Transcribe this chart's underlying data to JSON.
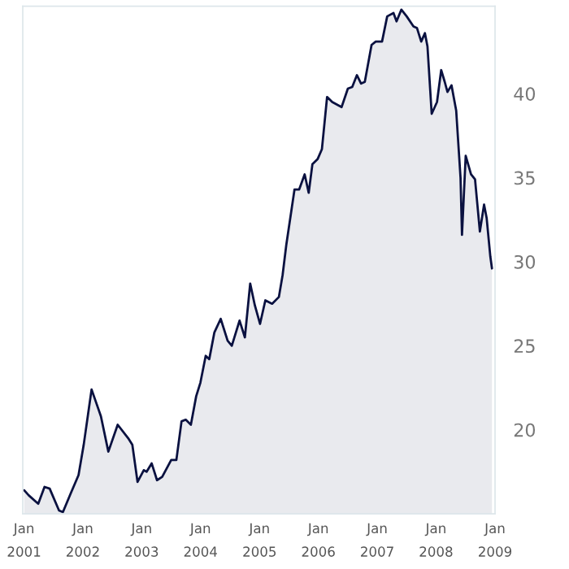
{
  "chart_data": {
    "type": "area",
    "x": [
      "2001-01-02",
      "2001-01-30",
      "2001-03-30",
      "2001-05-08",
      "2001-06-09",
      "2001-08-06",
      "2001-08-30",
      "2001-10-17",
      "2001-12-05",
      "2002-01-06",
      "2002-02-24",
      "2002-04-23",
      "2002-06-08",
      "2002-08-05",
      "2002-10-09",
      "2002-11-04",
      "2002-12-06",
      "2003-01-14",
      "2003-01-31",
      "2003-03-04",
      "2003-04-06",
      "2003-05-08",
      "2003-07-03",
      "2003-08-04",
      "2003-09-05",
      "2003-10-01",
      "2003-11-02",
      "2003-12-05",
      "2003-12-31",
      "2004-02-02",
      "2004-02-24",
      "2004-03-27",
      "2004-05-05",
      "2004-06-17",
      "2004-07-13",
      "2004-08-30",
      "2004-10-02",
      "2004-11-04",
      "2004-12-03",
      "2005-01-04",
      "2005-02-06",
      "2005-03-20",
      "2005-05-01",
      "2005-05-24",
      "2005-06-16",
      "2005-08-06",
      "2005-09-04",
      "2005-10-08",
      "2005-11-02",
      "2005-11-25",
      "2005-12-27",
      "2006-01-23",
      "2006-02-24",
      "2006-03-28",
      "2006-05-25",
      "2006-07-03",
      "2006-07-30",
      "2006-08-28",
      "2006-09-23",
      "2006-10-16",
      "2006-11-27",
      "2006-12-23",
      "2007-01-31",
      "2007-03-04",
      "2007-04-12",
      "2007-05-01",
      "2007-05-31",
      "2007-07-03",
      "2007-08-14",
      "2007-09-05",
      "2007-10-01",
      "2007-10-24",
      "2007-11-09",
      "2007-12-05",
      "2008-01-07",
      "2008-02-02",
      "2008-02-24",
      "2008-03-12",
      "2008-04-06",
      "2008-05-05",
      "2008-06-01",
      "2008-06-10",
      "2008-07-03",
      "2008-08-05",
      "2008-08-30",
      "2008-09-29",
      "2008-10-25",
      "2008-11-10",
      "2008-12-03",
      "2008-12-13"
    ],
    "series": [
      {
        "color": "#0a1140",
        "values": [
          16.4,
          16.1,
          15.6,
          16.6,
          16.5,
          15.2,
          15.1,
          16.2,
          17.3,
          19.1,
          22.4,
          20.8,
          18.7,
          20.3,
          19.5,
          19.1,
          16.9,
          17.6,
          17.5,
          18.0,
          17.0,
          17.2,
          18.2,
          18.2,
          20.5,
          20.6,
          20.3,
          22.0,
          22.8,
          24.4,
          24.2,
          25.8,
          26.6,
          25.3,
          25.0,
          26.5,
          25.5,
          28.7,
          27.4,
          26.3,
          27.7,
          27.5,
          27.9,
          29.2,
          31.0,
          34.3,
          34.3,
          35.2,
          34.1,
          35.8,
          36.1,
          36.7,
          39.8,
          39.5,
          39.2,
          40.3,
          40.4,
          41.1,
          40.6,
          40.7,
          42.9,
          43.1,
          43.1,
          44.6,
          44.8,
          44.3,
          45.0,
          44.6,
          44.0,
          43.9,
          43.1,
          43.6,
          42.8,
          38.8,
          39.5,
          41.4,
          40.7,
          40.1,
          40.5,
          39.0,
          35.0,
          31.6,
          36.3,
          35.2,
          34.9,
          31.8,
          33.4,
          32.6,
          30.3,
          29.6
        ]
      }
    ],
    "xlim": [
      "2000-12-24",
      "2009-01-01"
    ],
    "xticks": [
      {
        "value": "2001-01-01",
        "label": "Jan\n2001"
      },
      {
        "value": "2002-01-01",
        "label": "Jan\n2002"
      },
      {
        "value": "2003-01-01",
        "label": "Jan\n2003"
      },
      {
        "value": "2004-01-01",
        "label": "Jan\n2004"
      },
      {
        "value": "2005-01-01",
        "label": "Jan\n2005"
      },
      {
        "value": "2006-01-01",
        "label": "Jan\n2006"
      },
      {
        "value": "2007-01-01",
        "label": "Jan\n2007"
      },
      {
        "value": "2008-01-01",
        "label": "Jan\n2008"
      },
      {
        "value": "2009-01-01",
        "label": "Jan\n2009"
      }
    ],
    "ylim": [
      15,
      45.2
    ],
    "yticks": [
      20,
      25,
      30,
      35,
      40
    ],
    "grid": false,
    "legend": false
  }
}
